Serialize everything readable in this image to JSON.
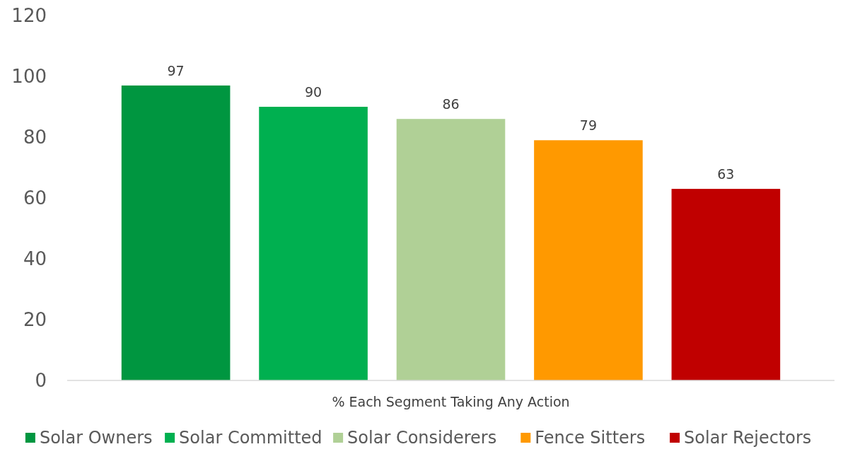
{
  "chart_data": {
    "type": "bar",
    "categories": [
      "% Each Segment Taking Any Action"
    ],
    "series": [
      {
        "name": "Solar Owners",
        "color": "#009640",
        "values": [
          97
        ]
      },
      {
        "name": "Solar Committed",
        "color": "#00b050",
        "values": [
          90
        ]
      },
      {
        "name": "Solar Considerers",
        "color": "#b0d096",
        "values": [
          86
        ]
      },
      {
        "name": "Fence Sitters",
        "color": "#ff9900",
        "values": [
          79
        ]
      },
      {
        "name": "Solar Rejectors",
        "color": "#c00000",
        "values": [
          63
        ]
      }
    ],
    "ylim": [
      0,
      120
    ],
    "yticks": [
      0,
      20,
      40,
      60,
      80,
      100,
      120
    ],
    "data_labels": true,
    "legend": "bottom",
    "grid": false
  }
}
